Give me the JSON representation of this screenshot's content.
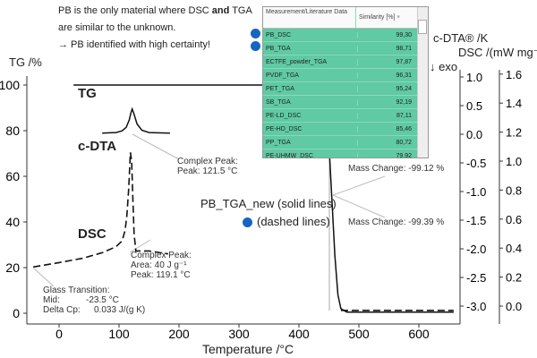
{
  "note": {
    "line1_a": "PB is the only material where DSC ",
    "line1_b": "and",
    "line1_c": " TGA",
    "line2": "are similar to the unknown.",
    "line3": "→ PB identified with high certainty!"
  },
  "table": {
    "col1": "Measurement/Literature Data",
    "col2": "Similarity [%]",
    "rows": [
      [
        "PB_DSC",
        "99,30"
      ],
      [
        "PB_TGA",
        "98,71"
      ],
      [
        "ECTFE_powder_TGA",
        "97,87"
      ],
      [
        "PVDF_TGA",
        "96,31"
      ],
      [
        "PET_TGA",
        "95,24"
      ],
      [
        "SB_TGA",
        "92,19"
      ],
      [
        "PE-LD_DSC",
        "87,11"
      ],
      [
        "PE-HD_DSC",
        "85,46"
      ],
      [
        "PP_TGA",
        "80,72"
      ],
      [
        "PE-UHMW_DSC",
        "79,92"
      ]
    ]
  },
  "legend": {
    "solid": "PB_TGA_new (solid lines)",
    "dashed": "(dashed lines)"
  },
  "colors": {
    "marker": "#1565c0",
    "table_row": "#5fcaa3"
  },
  "chart_data": {
    "type": "line",
    "xlabel": "Temperature /°C",
    "xlim": [
      -50,
      650
    ],
    "xticks": [
      "0",
      "100",
      "200",
      "300",
      "400",
      "500",
      "600"
    ],
    "y_axes": [
      {
        "label": "TG /%",
        "ylim": [
          -8,
          105
        ],
        "ticks": [
          "0",
          "20",
          "40",
          "60",
          "80",
          "100"
        ]
      },
      {
        "label": "c-DTA® /K",
        "sublabel": "↓ exo",
        "ticks": [
          "1.0",
          "0.5",
          "0.0",
          "-0.5",
          "-1.0",
          "-1.5",
          "-2.0",
          "-2.5",
          "-3.0"
        ]
      },
      {
        "label": "DSC /(mW mg⁻¹)",
        "ticks": [
          "1.6",
          "1.4",
          "1.2",
          "1.0",
          "0.8",
          "0.6",
          "0.4",
          "0.2",
          "0.0"
        ]
      }
    ],
    "series": [
      {
        "name": "TG",
        "axis": 0,
        "style": "solid",
        "x": [
          24,
          440,
          448,
          452,
          456,
          460,
          465,
          470,
          480,
          658
        ],
        "y": [
          100,
          100,
          85,
          65,
          45,
          25,
          8,
          2,
          0.5,
          0.5
        ]
      },
      {
        "name": "c-DTA",
        "axis": 1,
        "style": "solid",
        "x": [
          72,
          95,
          105,
          112,
          117,
          120,
          122,
          125,
          130,
          138,
          150,
          185
        ],
        "y": [
          0.02,
          0.03,
          0.06,
          0.12,
          0.25,
          0.38,
          0.44,
          0.35,
          0.18,
          0.07,
          0.03,
          0.02
        ]
      },
      {
        "name": "DSC",
        "axis": 2,
        "style": "dashed",
        "x": [
          -43,
          0,
          40,
          73,
          95,
          105,
          110,
          113,
          116,
          118,
          119,
          121,
          123,
          125,
          128,
          135,
          150,
          182
        ],
        "y": [
          0.27,
          0.3,
          0.33,
          0.37,
          0.41,
          0.45,
          0.52,
          0.62,
          0.8,
          0.98,
          1.06,
          1.0,
          0.75,
          0.5,
          0.38,
          0.38,
          0.38,
          0.36
        ]
      }
    ],
    "annotations": {
      "tg_label": "TG",
      "cdta_label": "c-DTA",
      "dsc_label": "DSC",
      "cdta_peak": {
        "title": "Complex Peak:",
        "peak": "Peak:  121.5 °C"
      },
      "dsc_peak": {
        "title": "Complex Peak:",
        "area": "Area:  40 J g⁻¹",
        "peak": "Peak:  119.1 °C"
      },
      "glass": {
        "title": "Glass Transition:",
        "mid_label": "Mid:",
        "mid": "-23.5 °C",
        "cp_label": "Delta Cp:",
        "cp": "0.033 J/(g K)"
      },
      "mass1": "Mass Change:  -99.12 %",
      "mass2": "Mass Change:  -99.39 %"
    }
  }
}
